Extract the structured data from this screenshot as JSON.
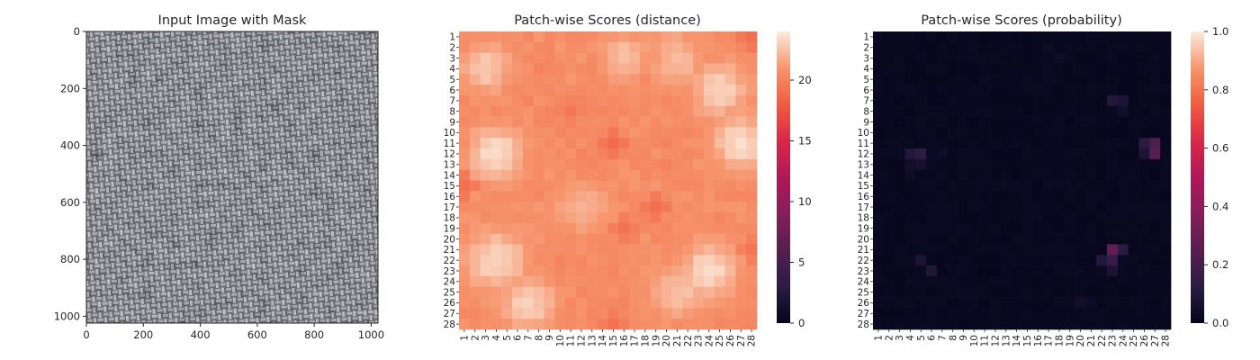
{
  "chart_data": [
    {
      "type": "image",
      "title": "Input Image with Mask",
      "xlim": [
        0,
        1024
      ],
      "ylim": [
        1024,
        0
      ],
      "xticks": [
        0,
        200,
        400,
        600,
        800,
        1000
      ],
      "yticks": [
        0,
        200,
        400,
        600,
        800,
        1000
      ],
      "texture": "gray woven fabric (burlap)",
      "colors": {
        "dark": "#3d3d42",
        "light": "#b6bcbf"
      }
    },
    {
      "type": "heatmap",
      "title": "Patch-wise Scores (distance)",
      "rows": 28,
      "cols": 28,
      "row_labels": [
        "1",
        "2",
        "3",
        "4",
        "5",
        "6",
        "7",
        "8",
        "9",
        "10",
        "11",
        "12",
        "13",
        "14",
        "15",
        "16",
        "17",
        "18",
        "19",
        "20",
        "21",
        "22",
        "23",
        "24",
        "25",
        "26",
        "27",
        "28"
      ],
      "col_labels": [
        "1",
        "2",
        "3",
        "4",
        "5",
        "6",
        "7",
        "8",
        "9",
        "10",
        "11",
        "12",
        "13",
        "14",
        "15",
        "16",
        "17",
        "18",
        "19",
        "20",
        "21",
        "22",
        "23",
        "24",
        "25",
        "26",
        "27",
        "28"
      ],
      "colormap": "rocket",
      "vmin": 0,
      "vmax": 24,
      "colorbar_ticks": [
        0,
        5,
        10,
        15,
        20
      ],
      "base_value": 20.3,
      "highlights": [
        {
          "row": 4,
          "col": 3,
          "value": 23.0,
          "radius": 1.6
        },
        {
          "row": 3,
          "col": 16,
          "value": 22.5,
          "radius": 1.6
        },
        {
          "row": 3,
          "col": 21,
          "value": 22.3,
          "radius": 1.8
        },
        {
          "row": 6,
          "col": 25,
          "value": 23.2,
          "radius": 1.8
        },
        {
          "row": 11,
          "col": 27,
          "value": 23.6,
          "radius": 1.8
        },
        {
          "row": 12,
          "col": 4,
          "value": 23.6,
          "radius": 1.8
        },
        {
          "row": 17,
          "col": 12,
          "value": 22.0,
          "radius": 1.8
        },
        {
          "row": 22,
          "col": 4,
          "value": 23.4,
          "radius": 2.0
        },
        {
          "row": 23,
          "col": 24,
          "value": 23.6,
          "radius": 1.8
        },
        {
          "row": 26,
          "col": 7,
          "value": 23.2,
          "radius": 1.8
        },
        {
          "row": 25,
          "col": 21,
          "value": 22.6,
          "radius": 1.8
        }
      ],
      "lowlights": [
        {
          "row": 11,
          "col": 15,
          "value": 18.8
        },
        {
          "row": 15,
          "col": 1,
          "value": 19.0
        },
        {
          "row": 17,
          "col": 19,
          "value": 19.0
        },
        {
          "row": 19,
          "col": 16,
          "value": 19.2
        },
        {
          "row": 1,
          "col": 28,
          "value": 19.0
        },
        {
          "row": 28,
          "col": 15,
          "value": 19.2
        },
        {
          "row": 8,
          "col": 11,
          "value": 19.4
        },
        {
          "row": 21,
          "col": 28,
          "value": 19.3
        }
      ]
    },
    {
      "type": "heatmap",
      "title": "Patch-wise Scores (probability)",
      "rows": 28,
      "cols": 28,
      "row_labels": [
        "1",
        "2",
        "3",
        "4",
        "5",
        "6",
        "7",
        "8",
        "9",
        "10",
        "11",
        "12",
        "13",
        "14",
        "15",
        "16",
        "17",
        "18",
        "19",
        "20",
        "21",
        "22",
        "23",
        "24",
        "25",
        "26",
        "27",
        "28"
      ],
      "col_labels": [
        "1",
        "2",
        "3",
        "4",
        "5",
        "6",
        "7",
        "8",
        "9",
        "10",
        "11",
        "12",
        "13",
        "14",
        "15",
        "16",
        "17",
        "18",
        "19",
        "20",
        "21",
        "22",
        "23",
        "24",
        "25",
        "26",
        "27",
        "28"
      ],
      "colormap": "rocket",
      "vmin": 0,
      "vmax": 1,
      "colorbar_ticks": [
        "0.0",
        "0.2",
        "0.4",
        "0.6",
        "0.8",
        "1.0"
      ],
      "base_value": 0.01,
      "cells": [
        {
          "row": 7,
          "col": 23,
          "value": 0.1
        },
        {
          "row": 7,
          "col": 24,
          "value": 0.08
        },
        {
          "row": 8,
          "col": 24,
          "value": 0.05
        },
        {
          "row": 11,
          "col": 26,
          "value": 0.12
        },
        {
          "row": 11,
          "col": 27,
          "value": 0.22
        },
        {
          "row": 12,
          "col": 27,
          "value": 0.25
        },
        {
          "row": 12,
          "col": 26,
          "value": 0.08
        },
        {
          "row": 12,
          "col": 4,
          "value": 0.1
        },
        {
          "row": 12,
          "col": 5,
          "value": 0.13
        },
        {
          "row": 13,
          "col": 5,
          "value": 0.06
        },
        {
          "row": 13,
          "col": 4,
          "value": 0.05
        },
        {
          "row": 21,
          "col": 23,
          "value": 0.28
        },
        {
          "row": 21,
          "col": 24,
          "value": 0.12
        },
        {
          "row": 22,
          "col": 23,
          "value": 0.15
        },
        {
          "row": 22,
          "col": 22,
          "value": 0.1
        },
        {
          "row": 23,
          "col": 23,
          "value": 0.08
        },
        {
          "row": 22,
          "col": 5,
          "value": 0.08
        },
        {
          "row": 23,
          "col": 6,
          "value": 0.09
        },
        {
          "row": 2,
          "col": 17,
          "value": 0.04
        },
        {
          "row": 3,
          "col": 18,
          "value": 0.04
        },
        {
          "row": 26,
          "col": 20,
          "value": 0.05
        },
        {
          "row": 26,
          "col": 21,
          "value": 0.04
        },
        {
          "row": 12,
          "col": 7,
          "value": 0.04
        },
        {
          "row": 14,
          "col": 4,
          "value": 0.04
        }
      ]
    }
  ]
}
